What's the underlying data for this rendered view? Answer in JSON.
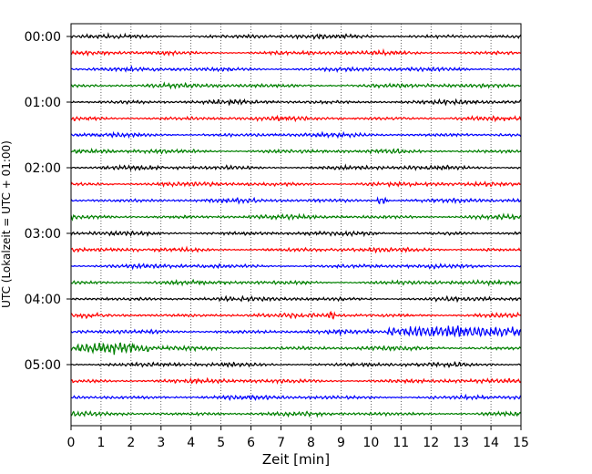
{
  "chart_data": {
    "type": "line",
    "title": "",
    "xlabel": "Zeit  [min]",
    "ylabel": "UTC (Lokalzeit = UTC + 01:00)",
    "xlim": [
      0,
      15
    ],
    "x_ticks": [
      "0",
      "1",
      "2",
      "3",
      "4",
      "5",
      "6",
      "7",
      "8",
      "9",
      "10",
      "11",
      "12",
      "13",
      "14",
      "15"
    ],
    "y_ticks": [
      "00:00",
      "01:00",
      "02:00",
      "03:00",
      "04:00",
      "05:00"
    ],
    "row_minutes": 15,
    "row_count": 24,
    "row_colors": [
      "#000000",
      "#ff0000",
      "#0000ff",
      "#008000"
    ],
    "grid": "vertical-dotted",
    "events": [
      {
        "row": 18,
        "x_from": 10.5,
        "x_to": 15.0,
        "amp": 3.5
      },
      {
        "row": 19,
        "x_from": 0.2,
        "x_to": 2.6,
        "amp": 3.0
      },
      {
        "row": 17,
        "x_from": 8.5,
        "x_to": 8.8,
        "amp": 2.5
      },
      {
        "row": 10,
        "x_from": 10.2,
        "x_to": 10.6,
        "amp": 2.0
      }
    ]
  }
}
